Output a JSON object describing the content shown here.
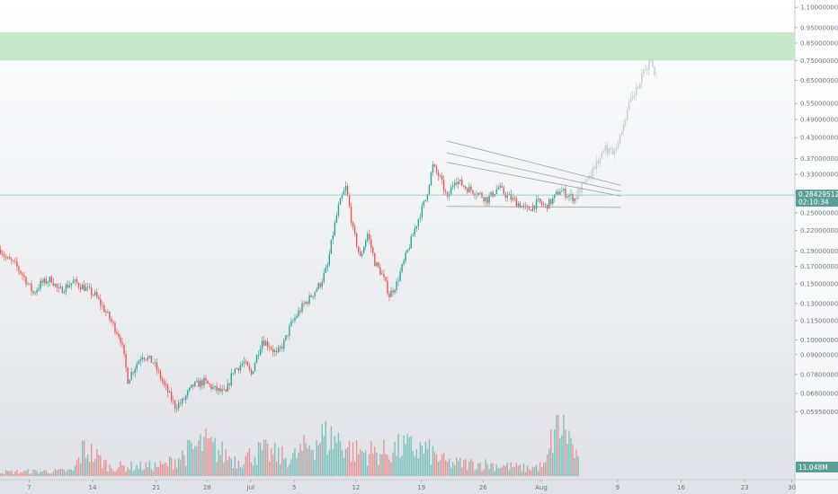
{
  "colors": {
    "up": "#26a69a",
    "down": "#ef5350",
    "projection": "#c9ccd3",
    "target_zone": "#c8e6c9",
    "trendline": "#9aa0aa",
    "price_line": "#7fc4bb",
    "label_bg": "#5b9e95"
  },
  "chart_data": {
    "type": "candlestick",
    "y_scale": "log",
    "ylim": [
      0.0505,
      1.13
    ],
    "y_ticks": [
      "1.10000000",
      "0.95000000",
      "0.85000000",
      "0.75000000",
      "0.65000000",
      "0.55000000",
      "0.49000000",
      "0.43000000",
      "0.37000000",
      "0.33000000",
      "0.29000000",
      "0.25000000",
      "0.22000000",
      "0.19000000",
      "0.17000000",
      "0.15000000",
      "0.13000000",
      "0.11500000",
      "0.10000000",
      "0.09000000",
      "0.07800000",
      "0.06800000",
      "0.05950000"
    ],
    "x_ticks": [
      "7",
      "14",
      "21",
      "28",
      "Jul",
      "5",
      "12",
      "19",
      "26",
      "Aug",
      "9",
      "16",
      "23",
      "30"
    ],
    "last_price": {
      "value": "0.28429512",
      "countdown": "02:10:34"
    },
    "volume_label": "11.048M",
    "target_zone": [
      0.75,
      0.92
    ],
    "keypoints_price": [
      [
        0,
        0.192
      ],
      [
        3,
        0.18
      ],
      [
        8,
        0.172
      ],
      [
        12,
        0.16
      ],
      [
        18,
        0.14
      ],
      [
        22,
        0.15
      ],
      [
        28,
        0.155
      ],
      [
        32,
        0.142
      ],
      [
        40,
        0.152
      ],
      [
        46,
        0.146
      ],
      [
        52,
        0.138
      ],
      [
        58,
        0.122
      ],
      [
        66,
        0.101
      ],
      [
        70,
        0.075
      ],
      [
        78,
        0.09
      ],
      [
        84,
        0.085
      ],
      [
        90,
        0.072
      ],
      [
        96,
        0.062
      ],
      [
        100,
        0.064
      ],
      [
        106,
        0.072
      ],
      [
        112,
        0.074
      ],
      [
        118,
        0.07
      ],
      [
        124,
        0.068
      ],
      [
        128,
        0.08
      ],
      [
        134,
        0.085
      ],
      [
        138,
        0.078
      ],
      [
        144,
        0.1
      ],
      [
        148,
        0.096
      ],
      [
        152,
        0.09
      ],
      [
        156,
        0.098
      ],
      [
        160,
        0.112
      ],
      [
        166,
        0.127
      ],
      [
        170,
        0.135
      ],
      [
        176,
        0.15
      ],
      [
        180,
        0.17
      ],
      [
        186,
        0.26
      ],
      [
        190,
        0.3
      ],
      [
        194,
        0.22
      ],
      [
        198,
        0.18
      ],
      [
        202,
        0.215
      ],
      [
        206,
        0.175
      ],
      [
        210,
        0.16
      ],
      [
        214,
        0.138
      ],
      [
        218,
        0.15
      ],
      [
        222,
        0.175
      ],
      [
        226,
        0.205
      ],
      [
        230,
        0.24
      ],
      [
        234,
        0.275
      ],
      [
        238,
        0.35
      ],
      [
        242,
        0.32
      ],
      [
        246,
        0.275
      ],
      [
        250,
        0.32
      ],
      [
        256,
        0.3
      ],
      [
        262,
        0.29
      ],
      [
        268,
        0.275
      ],
      [
        274,
        0.3
      ],
      [
        278,
        0.285
      ],
      [
        284,
        0.27
      ],
      [
        290,
        0.255
      ],
      [
        296,
        0.27
      ],
      [
        300,
        0.262
      ],
      [
        304,
        0.275
      ],
      [
        308,
        0.295
      ],
      [
        312,
        0.285
      ],
      [
        316,
        0.277
      ],
      [
        318,
        0.284
      ]
    ],
    "keypoints_projection": [
      [
        316,
        0.284
      ],
      [
        320,
        0.31
      ],
      [
        324,
        0.335
      ],
      [
        328,
        0.365
      ],
      [
        332,
        0.395
      ],
      [
        336,
        0.39
      ],
      [
        340,
        0.43
      ],
      [
        342,
        0.48
      ],
      [
        346,
        0.56
      ],
      [
        350,
        0.62
      ],
      [
        354,
        0.7
      ],
      [
        357,
        0.76
      ],
      [
        360,
        0.67
      ]
    ],
    "keypoints_volume": [
      [
        0,
        0.3
      ],
      [
        40,
        0.4
      ],
      [
        46,
        2.2
      ],
      [
        60,
        0.7
      ],
      [
        90,
        0.8
      ],
      [
        100,
        1.6
      ],
      [
        112,
        2.5
      ],
      [
        130,
        1.2
      ],
      [
        144,
        1.9
      ],
      [
        160,
        1.3
      ],
      [
        176,
        3.0
      ],
      [
        186,
        2.8
      ],
      [
        194,
        1.9
      ],
      [
        210,
        1.8
      ],
      [
        222,
        2.2
      ],
      [
        234,
        2.0
      ],
      [
        246,
        1.0
      ],
      [
        268,
        0.9
      ],
      [
        290,
        0.6
      ],
      [
        300,
        0.8
      ],
      [
        306,
        4.2
      ],
      [
        312,
        3.4
      ],
      [
        318,
        1.0
      ]
    ],
    "trendlines": [
      {
        "p1": [
          238,
          0.42
        ],
        "p2": [
          318,
          0.305
        ]
      },
      {
        "p1": [
          238,
          0.385
        ],
        "p2": [
          318,
          0.292
        ]
      },
      {
        "p1": [
          238,
          0.36
        ],
        "p2": [
          318,
          0.282
        ]
      },
      {
        "p1": [
          238,
          0.262
        ],
        "p2": [
          318,
          0.26
        ]
      }
    ]
  }
}
